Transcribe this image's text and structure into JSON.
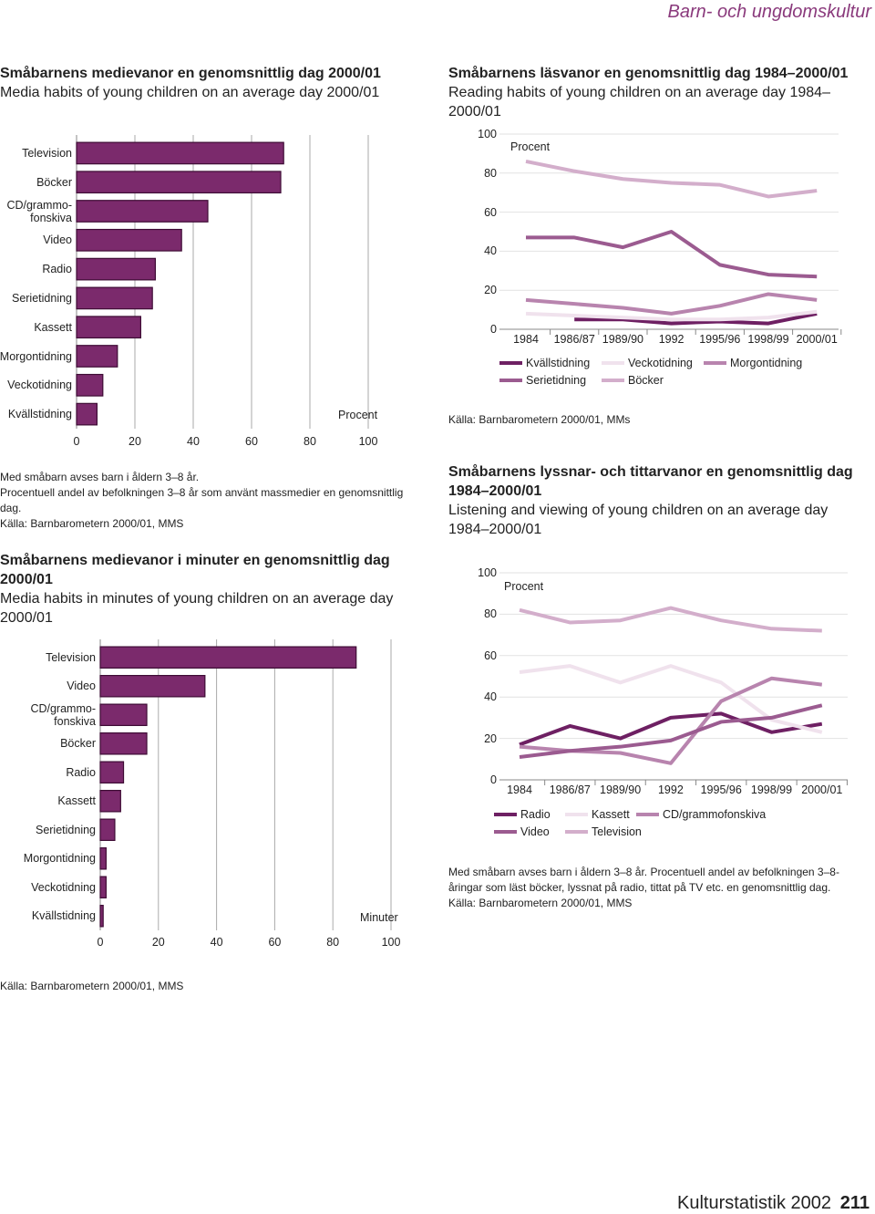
{
  "page": {
    "header": "Barn- och ungdomskultur",
    "footer": "Kulturstatistik 2002",
    "page_number": 211
  },
  "chart_data": [
    {
      "type": "bar",
      "horizontal": true,
      "title": "Småbarnens medievanor en genomsnittlig dag 2000/01",
      "subtitle": "Media habits of young children on an average day 2000/01",
      "value_axis_label": "Procent",
      "categories": [
        "Television",
        "Böcker",
        "CD/grammo-\nfonskiva",
        "Video",
        "Radio",
        "Serietidning",
        "Kassett",
        "Morgontidning",
        "Veckotidning",
        "Kvällstidning"
      ],
      "values": [
        71,
        70,
        45,
        36,
        27,
        26,
        22,
        14,
        9,
        7
      ],
      "color": "#7b2a6c",
      "xlim": [
        0,
        100
      ],
      "xticks": [
        0,
        20,
        40,
        60,
        80,
        100
      ],
      "grid": true,
      "notes": [
        "Med småbarn avses barn i åldern 3–8 år.",
        "Procentuell andel av befolkningen 3–8 år som använt massmedier en genomsnittlig dag."
      ],
      "source": "Källa: Barnbarometern 2000/01, MMS"
    },
    {
      "type": "line",
      "title": "Småbarnens läsvanor en genomsnittlig dag 1984–2000/01",
      "subtitle": "Reading habits of young children on an average day 1984–2000/01",
      "value_axis_label": "Procent",
      "categories": [
        "1984",
        "1986/87",
        "1989/90",
        "1992",
        "1995/96",
        "1998/99",
        "2000/01"
      ],
      "series": [
        {
          "name": "Kvällstidning",
          "color": "#6e2063",
          "values": [
            null,
            5,
            5,
            3,
            4,
            3,
            8
          ]
        },
        {
          "name": "Veckotidning",
          "color": "#f0e2ed",
          "values": [
            8,
            7,
            6,
            5,
            5,
            6,
            9
          ]
        },
        {
          "name": "Morgontidning",
          "color": "#b884ae",
          "values": [
            15,
            13,
            11,
            8,
            12,
            18,
            15
          ]
        },
        {
          "name": "Serietidning",
          "color": "#9b5b90",
          "values": [
            47,
            47,
            42,
            50,
            33,
            28,
            27
          ]
        },
        {
          "name": "Böcker",
          "color": "#d3aecb",
          "values": [
            86,
            81,
            77,
            75,
            74,
            68,
            71
          ]
        }
      ],
      "ylim": [
        0,
        100
      ],
      "yticks": [
        0,
        20,
        40,
        60,
        80,
        100
      ],
      "grid": true,
      "source": "Källa: Barnbarometern 2000/01, MMs"
    },
    {
      "type": "bar",
      "horizontal": true,
      "title": "Småbarnens medievanor i minuter en genomsnittlig dag 2000/01",
      "subtitle": "Media habits in minutes of young children on an average day 2000/01",
      "value_axis_label": "Minuter",
      "categories": [
        "Television",
        "Video",
        "CD/grammo-\nfonskiva",
        "Böcker",
        "Radio",
        "Kassett",
        "Serietidning",
        "Morgontidning",
        "Veckotidning",
        "Kvällstidning"
      ],
      "values": [
        88,
        36,
        16,
        16,
        8,
        7,
        5,
        2,
        2,
        1
      ],
      "color": "#7b2a6c",
      "xlim": [
        0,
        100
      ],
      "xticks": [
        0,
        20,
        40,
        60,
        80,
        100
      ],
      "grid": true,
      "source": "Källa: Barnbarometern 2000/01, MMS"
    },
    {
      "type": "line",
      "title": "Småbarnens lyssnar- och tittarvanor en genomsnittlig dag 1984–2000/01",
      "subtitle": "Listening and viewing of young children on an average day 1984–2000/01",
      "value_axis_label": "Procent",
      "categories": [
        "1984",
        "1986/87",
        "1989/90",
        "1992",
        "1995/96",
        "1998/99",
        "2000/01"
      ],
      "series": [
        {
          "name": "Radio",
          "color": "#6e2063",
          "values": [
            17,
            26,
            20,
            30,
            32,
            23,
            27
          ]
        },
        {
          "name": "Kassett",
          "color": "#f0e2ed",
          "values": [
            52,
            55,
            47,
            55,
            47,
            29,
            23
          ]
        },
        {
          "name": "CD/grammofonskiva",
          "color": "#b884ae",
          "values": [
            16,
            14,
            13,
            8,
            38,
            49,
            46
          ]
        },
        {
          "name": "Video",
          "color": "#9b5b90",
          "values": [
            11,
            14,
            16,
            19,
            28,
            30,
            36
          ]
        },
        {
          "name": "Television",
          "color": "#d3aecb",
          "values": [
            82,
            76,
            77,
            83,
            77,
            73,
            72
          ]
        }
      ],
      "ylim": [
        0,
        100
      ],
      "yticks": [
        0,
        20,
        40,
        60,
        80,
        100
      ],
      "grid": true,
      "notes": [
        "Med småbarn avses barn i åldern 3–8 år. Procentuell andel av befolkningen 3–8-åringar som läst böcker, lyssnat på radio, tittat på TV etc. en genomsnittlig dag."
      ],
      "source": "Källa: Barnbarometern 2000/01, MMS"
    }
  ]
}
